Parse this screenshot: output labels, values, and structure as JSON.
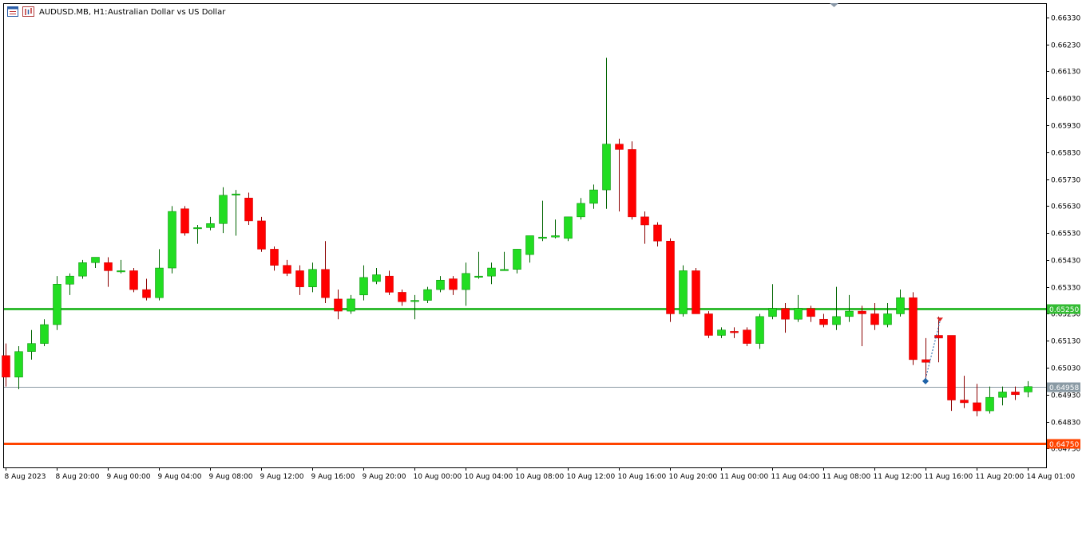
{
  "header": {
    "symbol_timeframe": "AUDUSD.MB, H1:",
    "description": "Australian Dollar vs US Dollar",
    "icons": [
      "chart-menu-icon",
      "bars-icon"
    ]
  },
  "colors": {
    "bull": "#22dd22",
    "bear": "#ff0000",
    "wick_bull": "#006400",
    "wick_bear": "#8b0000",
    "support_line": "#33bb33",
    "resistance_line": "#ff4400",
    "bid_line": "#8a9aa4",
    "trade_buy": "#1e62a8",
    "trade_sell": "#dd2222"
  },
  "chart_data": {
    "type": "candlestick",
    "title": "AUDUSD.MB, H1: Australian Dollar vs US Dollar",
    "ylim": [
      0.6466,
      0.6638
    ],
    "y_ticks": [
      "0.66330",
      "0.66230",
      "0.66130",
      "0.66030",
      "0.65930",
      "0.65830",
      "0.65730",
      "0.65630",
      "0.65530",
      "0.65430",
      "0.65330",
      "0.65230",
      "0.65130",
      "0.65030",
      "0.64930",
      "0.64830",
      "0.64730"
    ],
    "x_labels": [
      "8 Aug 2023",
      "8 Aug 20:00",
      "9 Aug 00:00",
      "9 Aug 04:00",
      "9 Aug 08:00",
      "9 Aug 12:00",
      "9 Aug 16:00",
      "9 Aug 20:00",
      "10 Aug 00:00",
      "10 Aug 04:00",
      "10 Aug 08:00",
      "10 Aug 12:00",
      "10 Aug 16:00",
      "10 Aug 20:00",
      "11 Aug 00:00",
      "11 Aug 04:00",
      "11 Aug 08:00",
      "11 Aug 12:00",
      "11 Aug 16:00",
      "11 Aug 20:00",
      "14 Aug 01:00"
    ],
    "horizontal_lines": [
      {
        "kind": "support",
        "price": 0.6525,
        "label": "0.65250"
      },
      {
        "kind": "bid",
        "price": 0.64958,
        "label": "0.64958"
      },
      {
        "kind": "resistance",
        "price": 0.6475,
        "label": "0.64750"
      }
    ],
    "candles": [
      {
        "o": 0.65075,
        "h": 0.6512,
        "l": 0.6496,
        "c": 0.64995
      },
      {
        "o": 0.64995,
        "h": 0.6511,
        "l": 0.6495,
        "c": 0.6509
      },
      {
        "o": 0.6509,
        "h": 0.6517,
        "l": 0.6506,
        "c": 0.6512
      },
      {
        "o": 0.6512,
        "h": 0.6521,
        "l": 0.6511,
        "c": 0.6519
      },
      {
        "o": 0.6519,
        "h": 0.6537,
        "l": 0.6517,
        "c": 0.6534
      },
      {
        "o": 0.6534,
        "h": 0.6538,
        "l": 0.653,
        "c": 0.6537
      },
      {
        "o": 0.6537,
        "h": 0.6543,
        "l": 0.6536,
        "c": 0.6542
      },
      {
        "o": 0.6542,
        "h": 0.6544,
        "l": 0.654,
        "c": 0.6544
      },
      {
        "o": 0.6542,
        "h": 0.6544,
        "l": 0.6533,
        "c": 0.6539
      },
      {
        "o": 0.6539,
        "h": 0.6543,
        "l": 0.6538,
        "c": 0.6539
      },
      {
        "o": 0.6539,
        "h": 0.654,
        "l": 0.6531,
        "c": 0.6532
      },
      {
        "o": 0.6532,
        "h": 0.6536,
        "l": 0.6528,
        "c": 0.6529
      },
      {
        "o": 0.6529,
        "h": 0.6547,
        "l": 0.6528,
        "c": 0.654
      },
      {
        "o": 0.654,
        "h": 0.6563,
        "l": 0.6538,
        "c": 0.6561
      },
      {
        "o": 0.6562,
        "h": 0.6563,
        "l": 0.6552,
        "c": 0.6553
      },
      {
        "o": 0.6555,
        "h": 0.6556,
        "l": 0.6549,
        "c": 0.6555
      },
      {
        "o": 0.6555,
        "h": 0.6559,
        "l": 0.6554,
        "c": 0.65565
      },
      {
        "o": 0.65565,
        "h": 0.657,
        "l": 0.6553,
        "c": 0.6567
      },
      {
        "o": 0.65675,
        "h": 0.6569,
        "l": 0.6552,
        "c": 0.65675
      },
      {
        "o": 0.6566,
        "h": 0.6568,
        "l": 0.6556,
        "c": 0.65575
      },
      {
        "o": 0.65575,
        "h": 0.6559,
        "l": 0.6546,
        "c": 0.6547
      },
      {
        "o": 0.6547,
        "h": 0.6548,
        "l": 0.6539,
        "c": 0.6541
      },
      {
        "o": 0.6541,
        "h": 0.6543,
        "l": 0.6537,
        "c": 0.6538
      },
      {
        "o": 0.6539,
        "h": 0.6541,
        "l": 0.653,
        "c": 0.6533
      },
      {
        "o": 0.6533,
        "h": 0.6542,
        "l": 0.6531,
        "c": 0.65395
      },
      {
        "o": 0.65395,
        "h": 0.655,
        "l": 0.6527,
        "c": 0.6529
      },
      {
        "o": 0.65285,
        "h": 0.6532,
        "l": 0.6521,
        "c": 0.6524
      },
      {
        "o": 0.6524,
        "h": 0.653,
        "l": 0.6523,
        "c": 0.65285
      },
      {
        "o": 0.653,
        "h": 0.6541,
        "l": 0.6528,
        "c": 0.65365
      },
      {
        "o": 0.6535,
        "h": 0.654,
        "l": 0.6534,
        "c": 0.65375
      },
      {
        "o": 0.6537,
        "h": 0.6539,
        "l": 0.653,
        "c": 0.6531
      },
      {
        "o": 0.6531,
        "h": 0.6532,
        "l": 0.6526,
        "c": 0.65275
      },
      {
        "o": 0.6528,
        "h": 0.653,
        "l": 0.6521,
        "c": 0.6528
      },
      {
        "o": 0.6528,
        "h": 0.6533,
        "l": 0.6527,
        "c": 0.6532
      },
      {
        "o": 0.6532,
        "h": 0.6537,
        "l": 0.6531,
        "c": 0.65355
      },
      {
        "o": 0.6536,
        "h": 0.6537,
        "l": 0.653,
        "c": 0.6532
      },
      {
        "o": 0.6532,
        "h": 0.6542,
        "l": 0.6526,
        "c": 0.6538
      },
      {
        "o": 0.6537,
        "h": 0.6546,
        "l": 0.6536,
        "c": 0.6537
      },
      {
        "o": 0.6537,
        "h": 0.6542,
        "l": 0.6534,
        "c": 0.654
      },
      {
        "o": 0.6539,
        "h": 0.6546,
        "l": 0.6539,
        "c": 0.65395
      },
      {
        "o": 0.65395,
        "h": 0.6547,
        "l": 0.6538,
        "c": 0.6547
      },
      {
        "o": 0.6545,
        "h": 0.6552,
        "l": 0.6542,
        "c": 0.6552
      },
      {
        "o": 0.6551,
        "h": 0.6565,
        "l": 0.655,
        "c": 0.65515
      },
      {
        "o": 0.65515,
        "h": 0.6558,
        "l": 0.6551,
        "c": 0.6552
      },
      {
        "o": 0.6551,
        "h": 0.6559,
        "l": 0.655,
        "c": 0.6559
      },
      {
        "o": 0.6559,
        "h": 0.6566,
        "l": 0.6558,
        "c": 0.6564
      },
      {
        "o": 0.6564,
        "h": 0.6571,
        "l": 0.6562,
        "c": 0.6569
      },
      {
        "o": 0.6569,
        "h": 0.6618,
        "l": 0.6562,
        "c": 0.6586
      },
      {
        "o": 0.6586,
        "h": 0.6588,
        "l": 0.6561,
        "c": 0.6584
      },
      {
        "o": 0.6584,
        "h": 0.6587,
        "l": 0.6558,
        "c": 0.6559
      },
      {
        "o": 0.6559,
        "h": 0.6561,
        "l": 0.6549,
        "c": 0.6556
      },
      {
        "o": 0.6556,
        "h": 0.6557,
        "l": 0.6548,
        "c": 0.655
      },
      {
        "o": 0.655,
        "h": 0.6551,
        "l": 0.652,
        "c": 0.6523
      },
      {
        "o": 0.6523,
        "h": 0.6541,
        "l": 0.6522,
        "c": 0.6539
      },
      {
        "o": 0.6539,
        "h": 0.654,
        "l": 0.6523,
        "c": 0.6523
      },
      {
        "o": 0.6523,
        "h": 0.6524,
        "l": 0.6514,
        "c": 0.6515
      },
      {
        "o": 0.6515,
        "h": 0.6518,
        "l": 0.6514,
        "c": 0.6517
      },
      {
        "o": 0.65165,
        "h": 0.6518,
        "l": 0.6514,
        "c": 0.6516
      },
      {
        "o": 0.6517,
        "h": 0.6518,
        "l": 0.6511,
        "c": 0.6512
      },
      {
        "o": 0.6512,
        "h": 0.6523,
        "l": 0.651,
        "c": 0.6522
      },
      {
        "o": 0.6522,
        "h": 0.6534,
        "l": 0.6521,
        "c": 0.6525
      },
      {
        "o": 0.6525,
        "h": 0.6527,
        "l": 0.6516,
        "c": 0.6521
      },
      {
        "o": 0.6521,
        "h": 0.653,
        "l": 0.652,
        "c": 0.6525
      },
      {
        "o": 0.6525,
        "h": 0.6526,
        "l": 0.652,
        "c": 0.6522
      },
      {
        "o": 0.6521,
        "h": 0.6523,
        "l": 0.6518,
        "c": 0.6519
      },
      {
        "o": 0.6519,
        "h": 0.6533,
        "l": 0.6517,
        "c": 0.6522
      },
      {
        "o": 0.6522,
        "h": 0.653,
        "l": 0.652,
        "c": 0.6524
      },
      {
        "o": 0.6524,
        "h": 0.6526,
        "l": 0.6511,
        "c": 0.6523
      },
      {
        "o": 0.6523,
        "h": 0.6527,
        "l": 0.6517,
        "c": 0.6519
      },
      {
        "o": 0.6519,
        "h": 0.6527,
        "l": 0.6518,
        "c": 0.6523
      },
      {
        "o": 0.6523,
        "h": 0.6532,
        "l": 0.6522,
        "c": 0.6529
      },
      {
        "o": 0.6529,
        "h": 0.6531,
        "l": 0.6504,
        "c": 0.6506
      },
      {
        "o": 0.6506,
        "h": 0.6514,
        "l": 0.6498,
        "c": 0.6505
      },
      {
        "o": 0.6515,
        "h": 0.6522,
        "l": 0.6505,
        "c": 0.6514
      },
      {
        "o": 0.6515,
        "h": 0.6515,
        "l": 0.6487,
        "c": 0.6491
      },
      {
        "o": 0.6491,
        "h": 0.65,
        "l": 0.6488,
        "c": 0.649
      },
      {
        "o": 0.649,
        "h": 0.6497,
        "l": 0.6485,
        "c": 0.6487
      },
      {
        "o": 0.6487,
        "h": 0.6496,
        "l": 0.6486,
        "c": 0.6492
      },
      {
        "o": 0.6492,
        "h": 0.6496,
        "l": 0.6489,
        "c": 0.6494
      },
      {
        "o": 0.6494,
        "h": 0.6496,
        "l": 0.6491,
        "c": 0.6493
      },
      {
        "o": 0.6494,
        "h": 0.6498,
        "l": 0.6492,
        "c": 0.6496
      }
    ],
    "trade_markers": [
      {
        "kind": "buy",
        "candle": 72,
        "price": 0.6498
      },
      {
        "kind": "sell",
        "candle": 73,
        "price": 0.6521
      }
    ],
    "grid": false,
    "legend": "none"
  }
}
